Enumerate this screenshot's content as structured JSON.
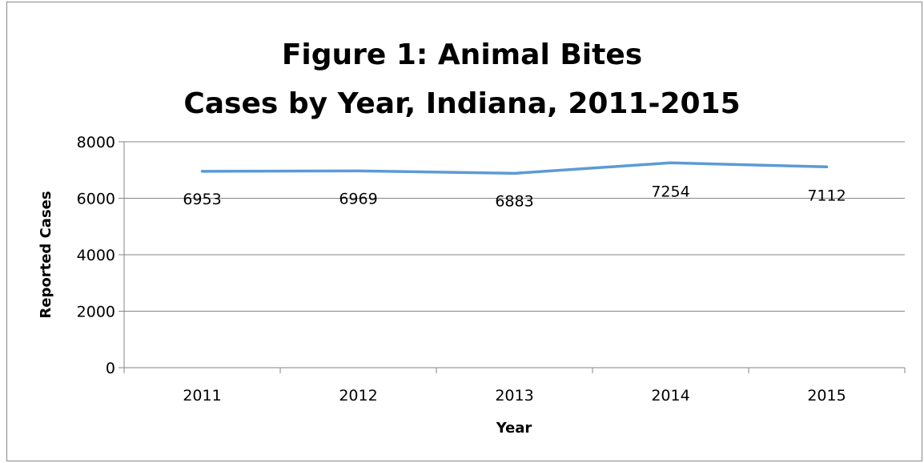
{
  "chart_data": {
    "type": "line",
    "title_lines": [
      "Figure 1: Animal Bites",
      "Cases by Year, Indiana, 2011-2015"
    ],
    "xlabel": "Year",
    "ylabel": "Reported Cases",
    "categories": [
      "2011",
      "2012",
      "2013",
      "2014",
      "2015"
    ],
    "series": [
      {
        "values": [
          6953,
          6969,
          6883,
          7254,
          7112
        ]
      }
    ],
    "data_labels": [
      "6953",
      "6969",
      "6883",
      "7254",
      "7112"
    ],
    "yticks": [
      "0",
      "2000",
      "4000",
      "6000",
      "8000"
    ],
    "ylim": [
      0,
      8000
    ],
    "grid": true,
    "legend": "none",
    "colors": {
      "line": "#5b9bd5",
      "grid": "#868686",
      "axis": "#868686"
    }
  }
}
